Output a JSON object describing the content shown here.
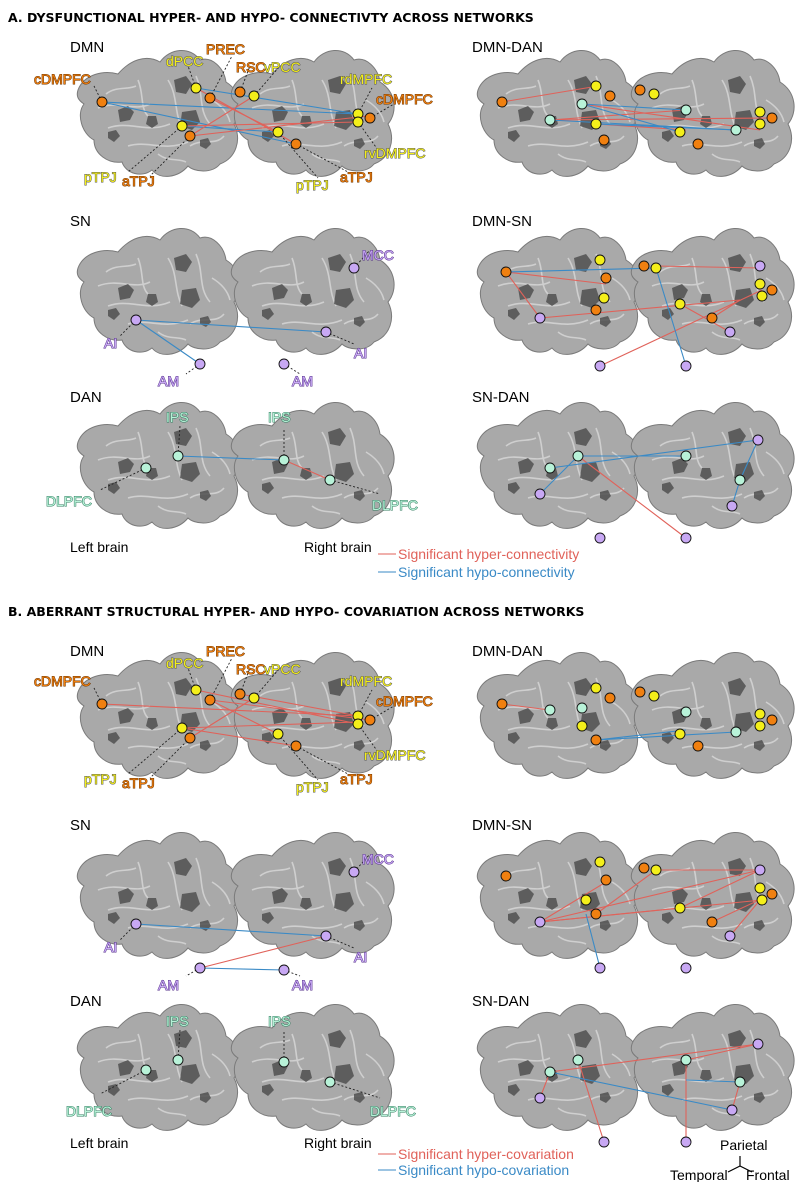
{
  "colors": {
    "hyper": "#e0625a",
    "hypo": "#3a8ac6",
    "orange": "#f08010",
    "yellow": "#f4ef1a",
    "purple": "#c8a8f4",
    "green": "#b8f2d8"
  },
  "sections": [
    {
      "title": "A. DYSFUNCTIONAL HYPER- AND HYPO- CONNECTIVTY ACROSS NETWORKS",
      "panels": {
        "dmn": "DMN",
        "sn": "SN",
        "dan": "DAN",
        "dmn_dan": "DMN-DAN",
        "dmn_sn": "DMN-SN",
        "sn_dan": "SN-DAN"
      },
      "left_brain": "Left brain",
      "right_brain": "Right brain",
      "legend_hyper": "Significant hyper-connectivity",
      "legend_hypo": "Significant hypo-connectivity"
    },
    {
      "title": "B. ABERRANT STRUCTURAL HYPER- AND HYPO- COVARIATION ACROSS NETWORKS",
      "panels": {
        "dmn": "DMN",
        "sn": "SN",
        "dan": "DAN",
        "dmn_dan": "DMN-DAN",
        "dmn_sn": "DMN-SN",
        "sn_dan": "SN-DAN"
      },
      "left_brain": "Left brain",
      "right_brain": "Right brain",
      "legend_hyper": "Significant hyper-covariation",
      "legend_hypo": "Significant hypo-covariation"
    }
  ],
  "regions": {
    "cdmpfc": "cDMPFC",
    "dpcc": "dPCC",
    "prec": "PREC",
    "rsc": "RSC",
    "vpcc": "vPCC",
    "rdmpfc": "rdMPFC",
    "rvdmpfc": "rvDMPFC",
    "ptpj": "pTPJ",
    "atpj": "aTPJ",
    "mcc": "MCC",
    "ai": "AI",
    "am": "AM",
    "ips": "IPS",
    "dlpfc": "DLPFC"
  },
  "orientation": {
    "parietal": "Parietal",
    "temporal": "Temporal",
    "frontal": "Frontal"
  }
}
